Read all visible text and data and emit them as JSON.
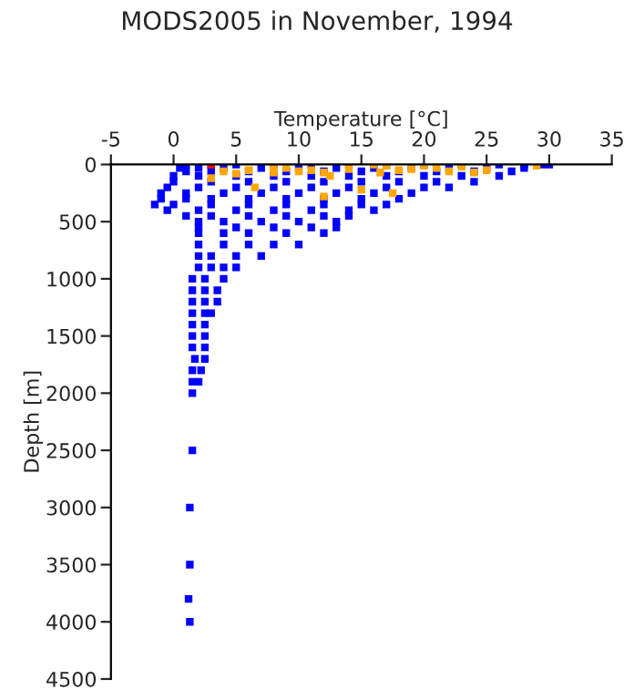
{
  "chart_data": {
    "type": "scatter",
    "title": "MODS2005 in November, 1994",
    "xlabel": "Temperature [°C]",
    "ylabel": "Depth [m]",
    "xlim": [
      -5,
      35
    ],
    "xticks": [
      -5,
      0,
      5,
      10,
      15,
      20,
      25,
      30,
      35
    ],
    "ylim": [
      4500,
      0
    ],
    "yticks": [
      0,
      500,
      1000,
      1500,
      2000,
      2500,
      3000,
      3500,
      4000,
      4500
    ],
    "grid": false,
    "legend": false,
    "marker": "square",
    "series": [
      {
        "color": "#0000ff",
        "x": [
          1,
          3,
          5,
          8,
          11,
          14,
          17,
          20,
          23,
          26,
          28,
          29.5,
          30,
          0.5,
          2,
          4,
          7,
          10,
          13,
          16,
          19,
          22,
          25,
          28,
          1,
          3,
          6,
          9,
          12,
          15,
          18,
          21,
          24,
          27,
          0,
          2,
          5,
          8,
          11,
          14,
          17,
          20,
          23,
          26,
          0,
          3,
          6,
          9,
          12,
          15,
          18,
          21,
          24,
          -0.5,
          2,
          5,
          8,
          11,
          14,
          17,
          20,
          22,
          -1,
          1,
          4,
          7,
          10,
          13,
          16,
          19,
          -1,
          1,
          3,
          6,
          9,
          12,
          15,
          18,
          -1.5,
          0,
          3,
          6,
          9,
          12,
          15,
          17,
          -0.5,
          2,
          5,
          8,
          11,
          14,
          16,
          1,
          3,
          6,
          9,
          12,
          14,
          2,
          4,
          7,
          10,
          13,
          2,
          5,
          8,
          11,
          13,
          2,
          4,
          6,
          9,
          12,
          2,
          4,
          6,
          8,
          10,
          2,
          3,
          5,
          7,
          2,
          3,
          4,
          5,
          1.5,
          2.5,
          4,
          1.5,
          2.5,
          3.5,
          1.5,
          2.5,
          3.5,
          1.5,
          2.5,
          3,
          1.5,
          2.5,
          1.5,
          2.5,
          1.5,
          2.5,
          1.7,
          2.5,
          1.5,
          2.2,
          1.5,
          2,
          1.5,
          1.5,
          1.3,
          1.3,
          1.2,
          1.3
        ],
        "values": [
          0,
          0,
          0,
          0,
          0,
          0,
          0,
          0,
          0,
          0,
          0,
          0,
          0,
          30,
          30,
          30,
          30,
          30,
          30,
          30,
          30,
          30,
          30,
          30,
          60,
          60,
          60,
          60,
          60,
          60,
          60,
          60,
          60,
          60,
          100,
          100,
          100,
          100,
          100,
          100,
          100,
          100,
          100,
          100,
          150,
          150,
          150,
          150,
          150,
          150,
          150,
          150,
          150,
          200,
          200,
          200,
          200,
          200,
          200,
          200,
          200,
          200,
          250,
          250,
          250,
          250,
          250,
          250,
          250,
          250,
          300,
          300,
          300,
          300,
          300,
          300,
          300,
          300,
          350,
          350,
          350,
          350,
          350,
          350,
          350,
          350,
          400,
          400,
          400,
          400,
          400,
          400,
          400,
          450,
          450,
          450,
          450,
          450,
          450,
          500,
          500,
          500,
          500,
          500,
          550,
          550,
          550,
          550,
          550,
          600,
          600,
          600,
          600,
          600,
          700,
          700,
          700,
          700,
          700,
          800,
          800,
          800,
          800,
          900,
          900,
          900,
          900,
          1000,
          1000,
          1000,
          1100,
          1100,
          1100,
          1200,
          1200,
          1200,
          1300,
          1300,
          1300,
          1400,
          1400,
          1500,
          1500,
          1600,
          1600,
          1700,
          1700,
          1800,
          1800,
          1900,
          1900,
          2000,
          2500,
          3000,
          3500,
          3800,
          4000
        ]
      },
      {
        "color": "#ffa500",
        "x": [
          4,
          5,
          6,
          8,
          8,
          9,
          10,
          11,
          12,
          14,
          12.5,
          16.5,
          16,
          17,
          18,
          19,
          20,
          21,
          22,
          23,
          24,
          25,
          29,
          17.5,
          12,
          15,
          6.5,
          3
        ],
        "values": [
          60,
          80,
          50,
          40,
          70,
          30,
          60,
          50,
          70,
          40,
          100,
          70,
          0,
          10,
          50,
          40,
          10,
          30,
          60,
          20,
          70,
          50,
          10,
          250,
          280,
          220,
          200,
          120
        ]
      },
      {
        "color": "#ff0000",
        "x": [
          3
        ],
        "values": [
          0
        ]
      }
    ]
  }
}
